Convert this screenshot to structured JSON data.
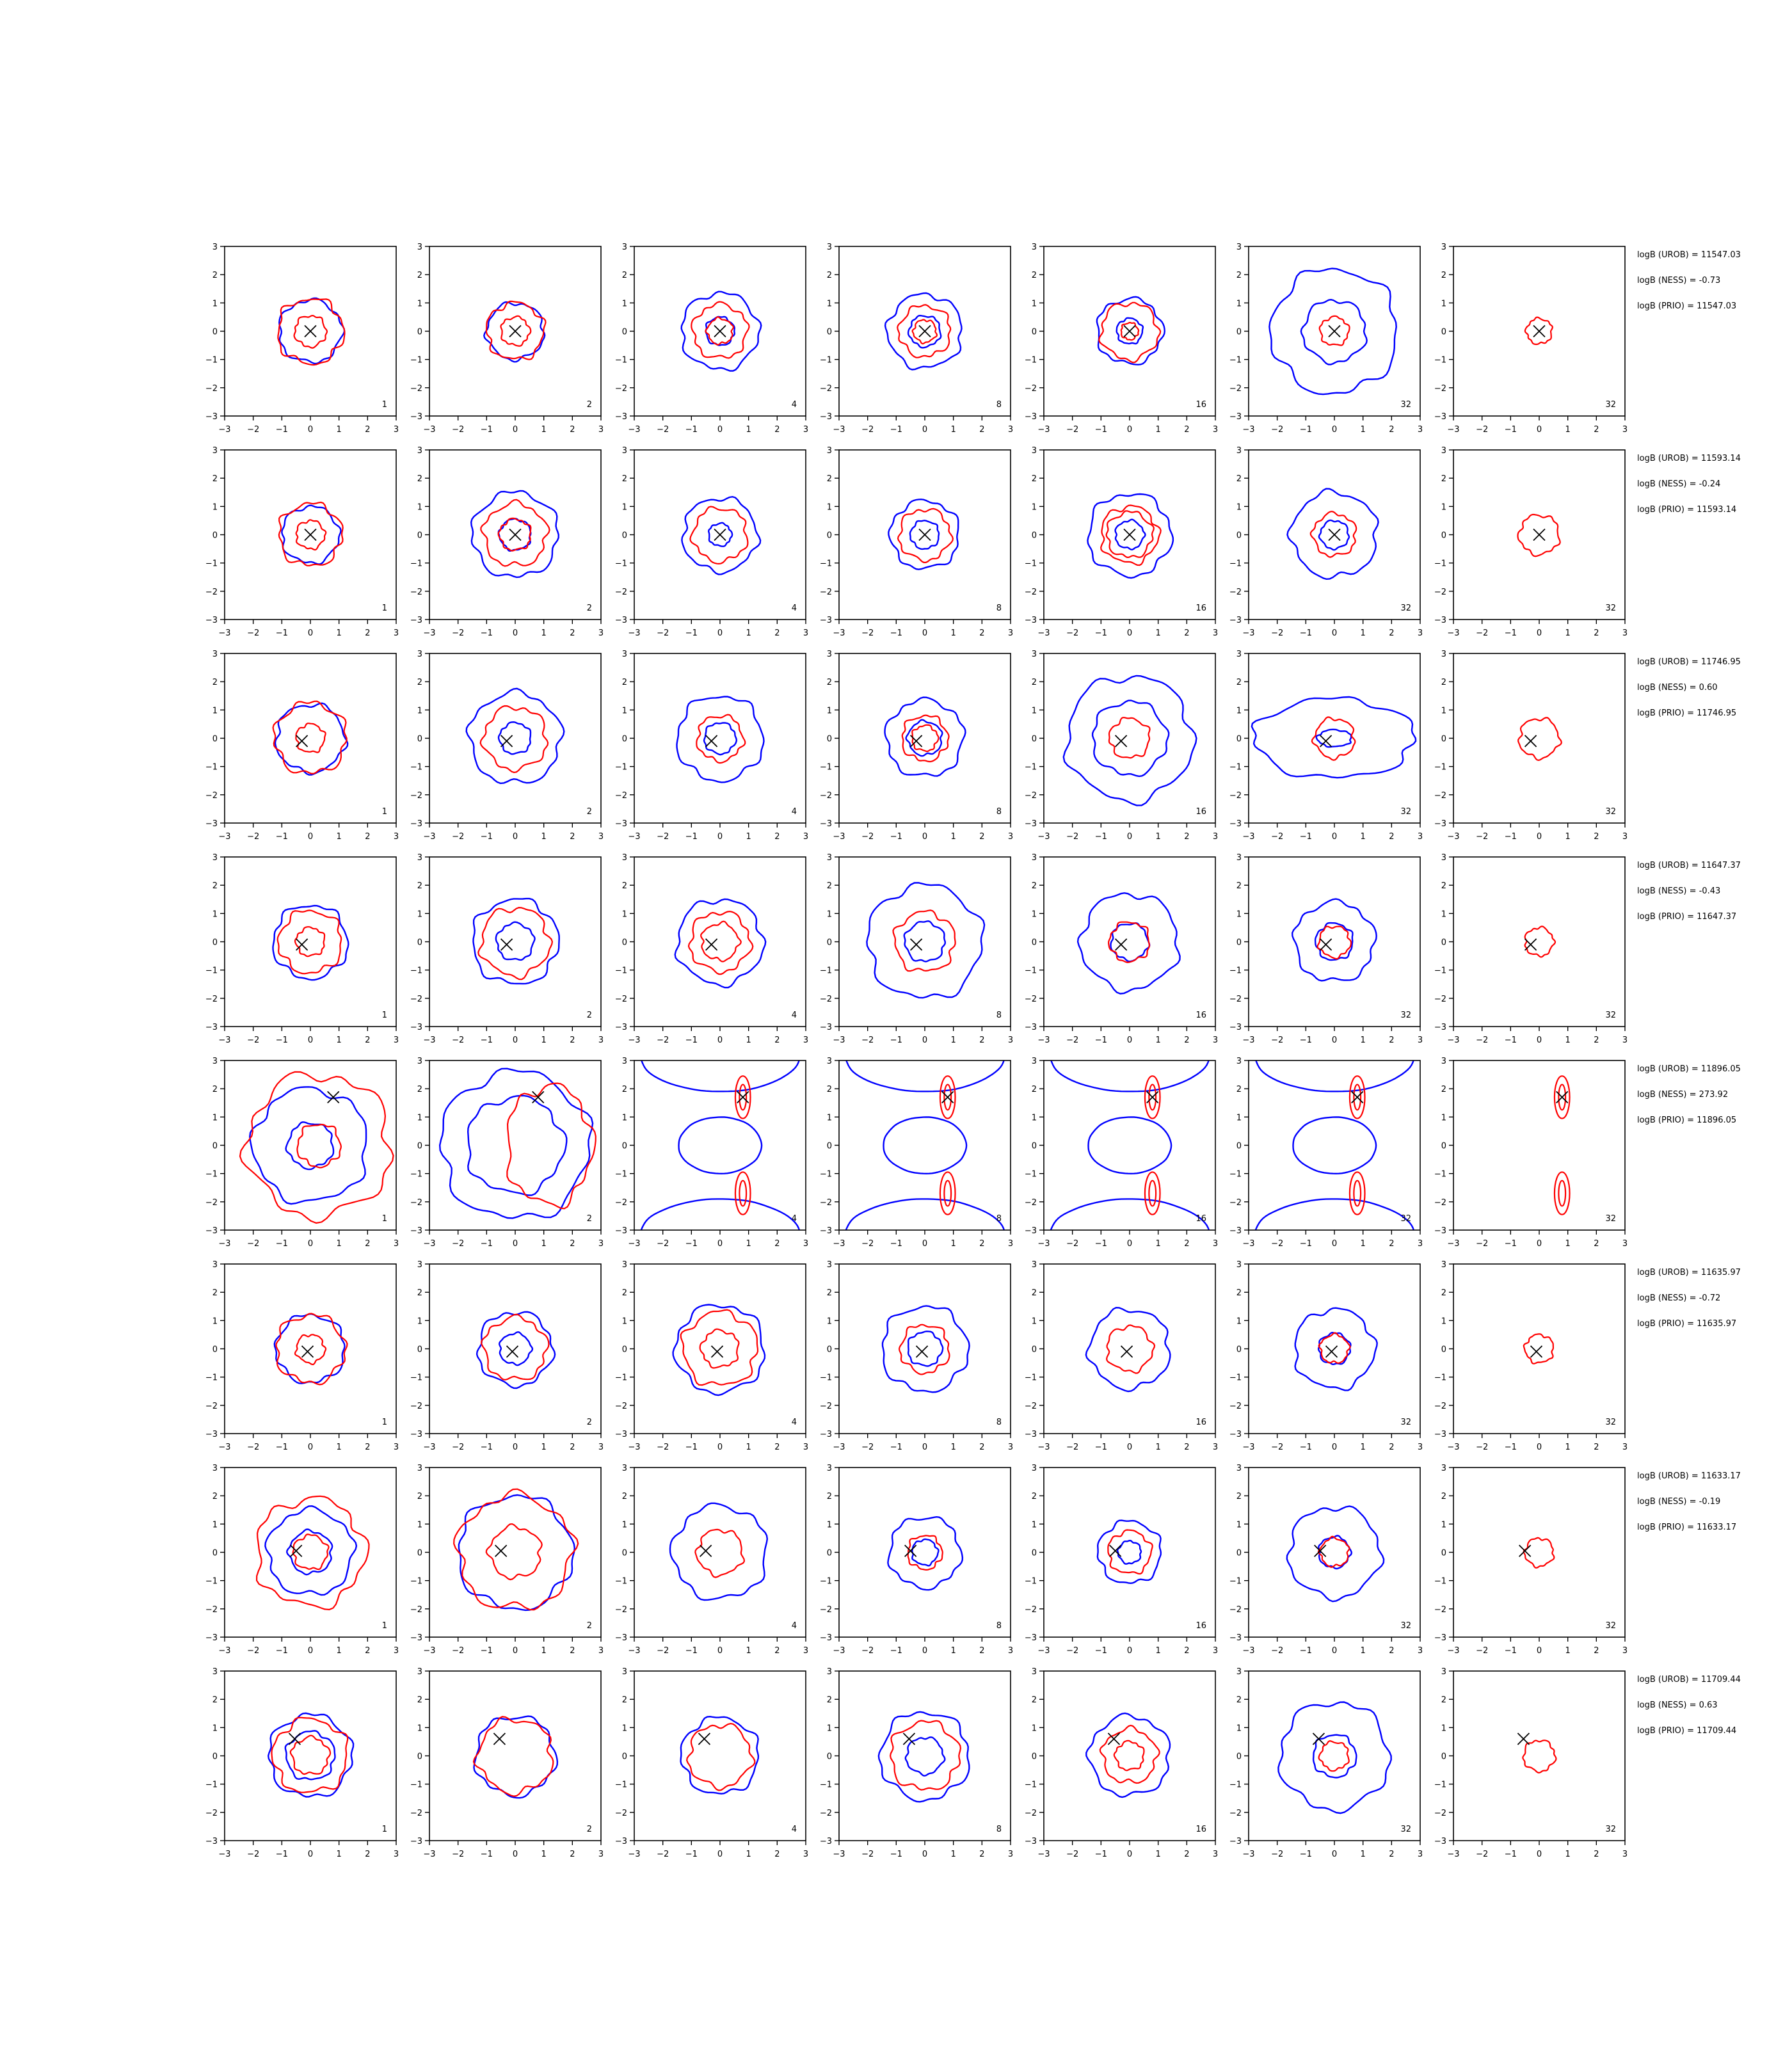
{
  "chart_data": {
    "type": "contour-grid",
    "axes": {
      "xlim": [
        -3,
        3
      ],
      "ylim": [
        -3,
        3
      ],
      "ticks": [
        -3,
        -2,
        -1,
        0,
        1,
        2,
        3
      ]
    },
    "column_labels": [
      "1",
      "2",
      "4",
      "8",
      "16",
      "32",
      "32"
    ],
    "colors": {
      "blue": "#0000ff",
      "red": "#ff0000",
      "marker": "#000000"
    },
    "rows": [
      {
        "marker": [
          0.0,
          0.0
        ],
        "blue": [
          [
            1.1
          ],
          [
            1.0
          ],
          [
            0.5,
            1.35
          ],
          [
            0.55,
            1.3
          ],
          [
            0.45,
            1.15
          ],
          [
            1.1,
            2.2
          ],
          []
        ],
        "red": [
          [
            1.15,
            0.55
          ],
          [
            1.0,
            0.5
          ],
          [
            0.45,
            0.95
          ],
          [
            0.4,
            0.9
          ],
          [
            0.3,
            1.0
          ],
          [
            0.5
          ],
          [
            0.45
          ]
        ],
        "stats": [
          "logB (UROB) = 11547.03",
          "logB (NESS) = -0.73",
          "logB (PRIO) = 11547.03"
        ]
      },
      {
        "marker": [
          0.0,
          0.0
        ],
        "blue": [
          [
            1.0
          ],
          [
            0.55,
            1.5
          ],
          [
            0.4,
            1.3
          ],
          [
            0.5,
            1.2
          ],
          [
            0.5,
            1.45
          ],
          [
            0.5,
            1.5
          ],
          []
        ],
        "red": [
          [
            1.1,
            0.5
          ],
          [
            0.55,
            1.1
          ],
          [
            0.95
          ],
          [
            0.9
          ],
          [
            0.8,
            1.0
          ],
          [
            0.75
          ],
          [
            0.7
          ]
        ],
        "stats": [
          "logB (UROB) = 11593.14",
          "logB (NESS) = -0.24",
          "logB (PRIO) = 11593.14"
        ]
      },
      {
        "marker": [
          -0.3,
          -0.1
        ],
        "blue": [
          [
            1.2
          ],
          [
            0.55,
            1.6
          ],
          [
            0.55,
            1.5
          ],
          [
            0.6,
            1.35
          ],
          [
            1.3,
            2.2
          ],
          [
            0.6,
            2.8
          ],
          []
        ],
        "red": [
          [
            1.25,
            0.5
          ],
          [
            1.1
          ],
          [
            0.8
          ],
          [
            0.45,
            0.8
          ],
          [
            0.7
          ],
          [
            0.7
          ],
          [
            0.7
          ]
        ],
        "stats": [
          "logB (UROB) = 11746.95",
          "logB (NESS) = 0.60",
          "logB (PRIO) = 11746.95"
        ]
      },
      {
        "marker": [
          -0.3,
          -0.1
        ],
        "blue": [
          [
            1.3
          ],
          [
            0.65,
            1.5
          ],
          [
            1.5
          ],
          [
            0.7,
            2.0
          ],
          [
            0.65,
            1.7
          ],
          [
            0.65,
            1.4
          ],
          []
        ],
        "red": [
          [
            1.1,
            0.5
          ],
          [
            1.2
          ],
          [
            0.65,
            1.05
          ],
          [
            1.05
          ],
          [
            0.7
          ],
          [
            0.55
          ],
          [
            0.5
          ]
        ],
        "stats": [
          "logB (UROB) = 11647.37",
          "logB (NESS) = -0.43",
          "logB (PRIO) = 11647.37"
        ]
      },
      {
        "marker": [
          0.8,
          1.7
        ],
        "blue": [
          [
            0.8,
            2.0
          ],
          [
            2.6,
            1.7
          ],
          [],
          [],
          [],
          [],
          []
        ],
        "red": [
          [
            0.75,
            2.5
          ],
          [
            1.5
          ],
          [],
          [],
          [],
          [],
          []
        ],
        "stats": [
          "logB (UROB) = 11896.05",
          "logB (NESS) = 273.92",
          "logB (PRIO) = 11896.05"
        ]
      },
      {
        "marker": [
          -0.1,
          -0.1
        ],
        "blue": [
          [
            1.2
          ],
          [
            0.55,
            1.3
          ],
          [
            1.55
          ],
          [
            0.6,
            1.5
          ],
          [
            1.4
          ],
          [
            0.55,
            1.4
          ],
          []
        ],
        "red": [
          [
            1.2,
            0.5
          ],
          [
            1.1
          ],
          [
            0.65,
            1.3
          ],
          [
            0.85
          ],
          [
            0.8
          ],
          [
            0.5
          ],
          [
            0.5
          ]
        ],
        "stats": [
          "logB (UROB) = 11635.97",
          "logB (NESS) = -0.72",
          "logB (PRIO) = 11635.97"
        ]
      },
      {
        "marker": [
          -0.5,
          0.05
        ],
        "blue": [
          [
            0.75,
            1.5
          ],
          [
            2.0
          ],
          [
            1.65
          ],
          [
            0.45,
            1.25
          ],
          [
            0.4,
            1.1
          ],
          [
            0.55,
            1.6
          ],
          []
        ],
        "red": [
          [
            0.6,
            1.9
          ],
          [
            0.9,
            2.0
          ],
          [
            0.8
          ],
          [
            0.6
          ],
          [
            0.75
          ],
          [
            0.5
          ],
          [
            0.5
          ]
        ],
        "stats": [
          "logB (UROB) = 11633.17",
          "logB (NESS) = -0.19",
          "logB (PRIO) = 11633.17"
        ]
      },
      {
        "marker": [
          -0.55,
          0.6
        ],
        "blue": [
          [
            0.85,
            1.45
          ],
          [
            1.4
          ],
          [
            1.35
          ],
          [
            0.65,
            1.55
          ],
          [
            1.4
          ],
          [
            0.75,
            1.9
          ],
          []
        ],
        "red": [
          [
            1.3,
            0.65
          ],
          [
            1.3
          ],
          [
            1.1
          ],
          [
            1.2
          ],
          [
            0.5,
            0.95
          ],
          [
            0.5
          ],
          [
            0.55
          ]
        ],
        "stats": [
          "logB (UROB) = 11709.44",
          "logB (NESS) = 0.63",
          "logB (PRIO) = 11709.44"
        ]
      }
    ]
  }
}
